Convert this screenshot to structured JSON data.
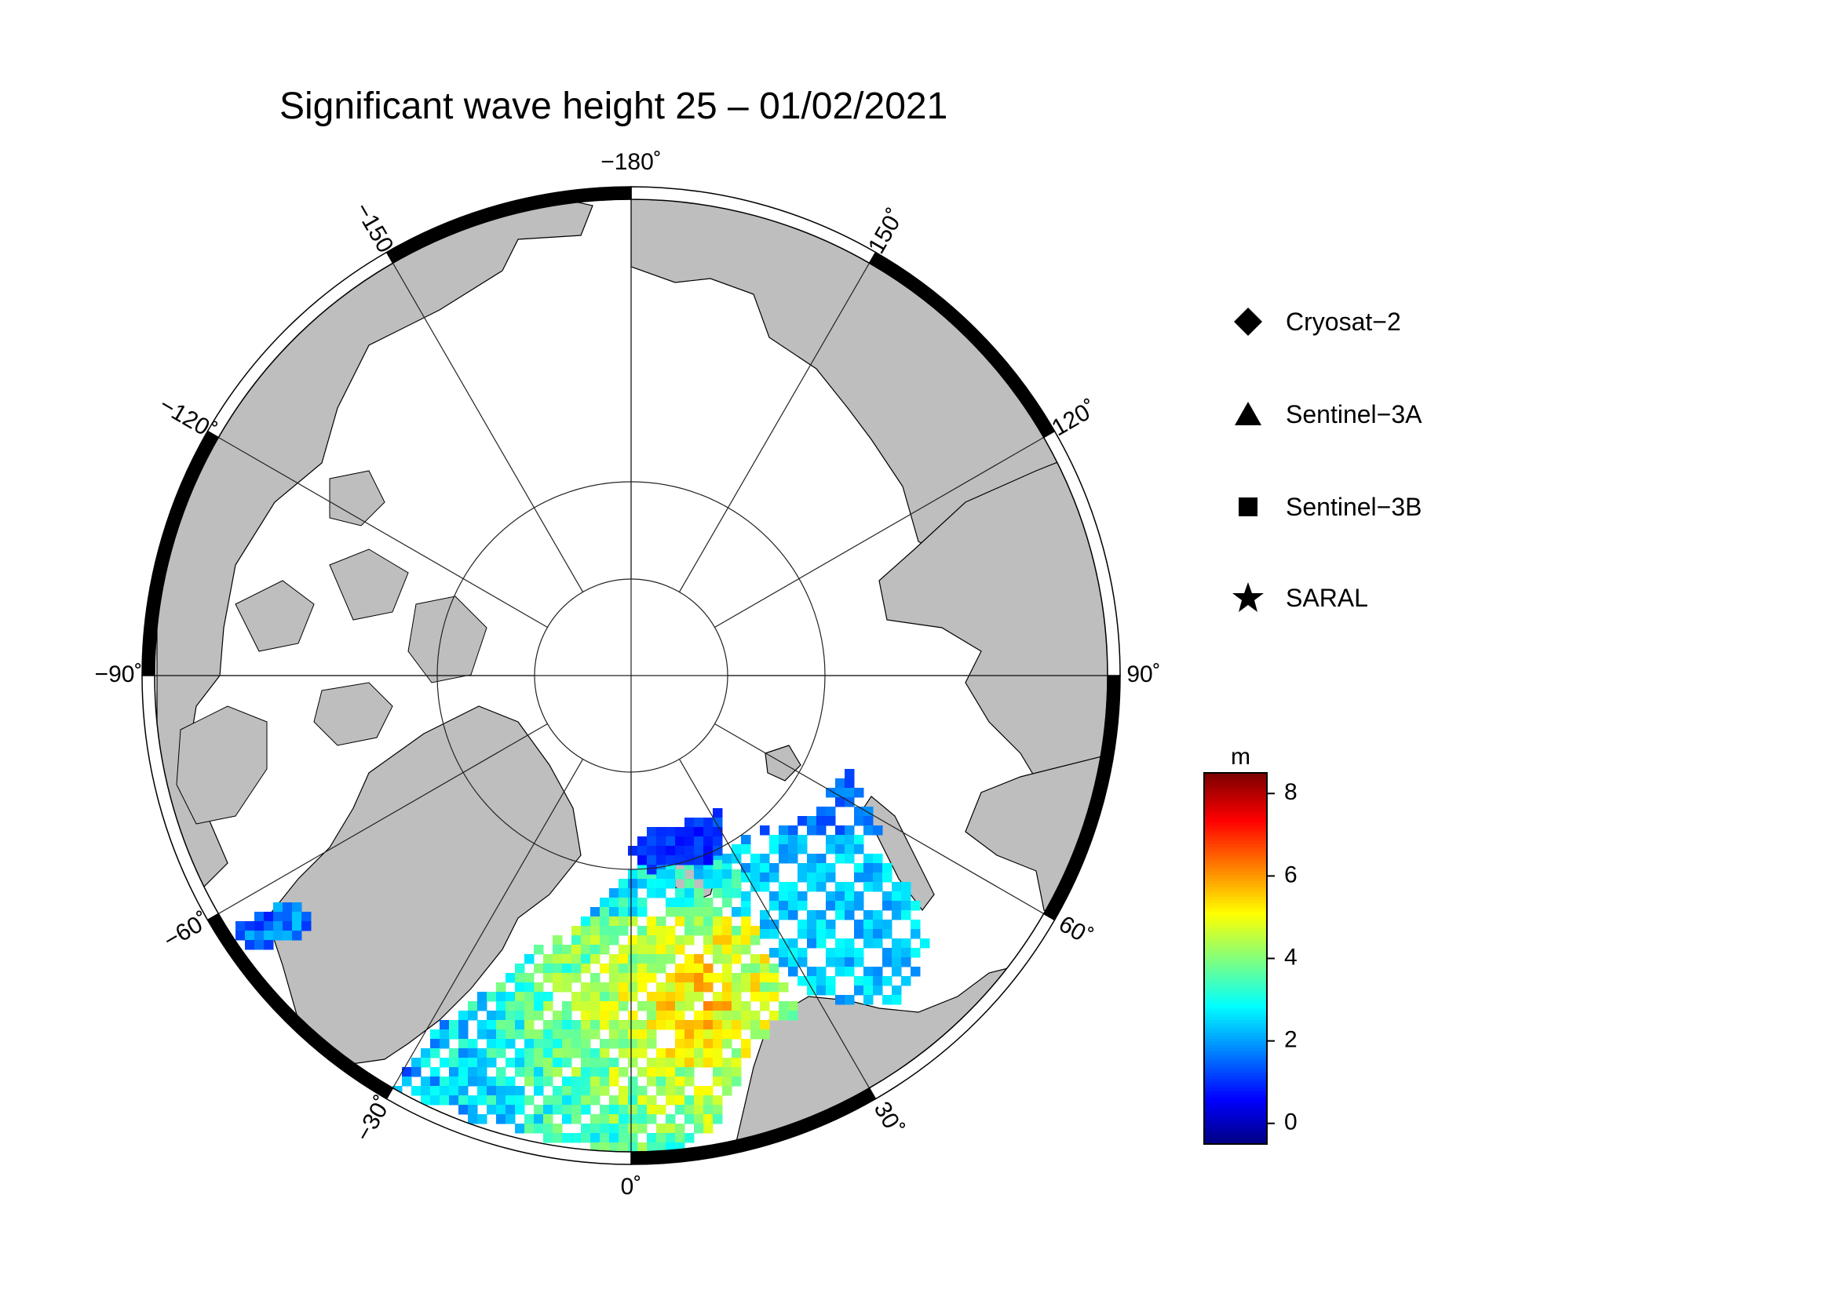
{
  "title": "Significant wave height 25 – 01/02/2021",
  "map": {
    "projection": "north-polar-stereographic",
    "longitude_labels": [
      {
        "lon": -180,
        "text": "−180˚"
      },
      {
        "lon": 150,
        "text": "150˚"
      },
      {
        "lon": 120,
        "text": "120˚"
      },
      {
        "lon": 90,
        "text": "90˚"
      },
      {
        "lon": 60,
        "text": "60˚"
      },
      {
        "lon": 30,
        "text": "30˚"
      },
      {
        "lon": 0,
        "text": "0˚"
      },
      {
        "lon": -30,
        "text": "−30˚"
      },
      {
        "lon": -60,
        "text": "−60˚"
      },
      {
        "lon": -90,
        "text": "−90˚"
      },
      {
        "lon": -120,
        "text": "−120˚"
      },
      {
        "lon": -150,
        "text": "−150˚"
      }
    ],
    "colors": {
      "land": "#bebebe",
      "sea_ice": "#ffffff",
      "ocean_nodata": "#ffffff"
    }
  },
  "legend": {
    "items": [
      {
        "label": "Cryosat−2",
        "icon": "diamond-icon"
      },
      {
        "label": "Sentinel−3A",
        "icon": "triangle-icon"
      },
      {
        "label": "Sentinel−3B",
        "icon": "square-icon"
      },
      {
        "label": "SARAL",
        "icon": "star-icon"
      }
    ]
  },
  "colorbar": {
    "unit": "m",
    "min": -0.5,
    "max": 8.5,
    "ticks": [
      {
        "value": 0,
        "label": "0"
      },
      {
        "value": 2,
        "label": "2"
      },
      {
        "value": 4,
        "label": "4"
      },
      {
        "value": 6,
        "label": "6"
      },
      {
        "value": 8,
        "label": "8"
      }
    ],
    "colormap": [
      "#00007f",
      "#0000ff",
      "#007fff",
      "#00ffff",
      "#7fff7f",
      "#ffff00",
      "#ff7f00",
      "#ff0000",
      "#7f0000"
    ]
  }
}
